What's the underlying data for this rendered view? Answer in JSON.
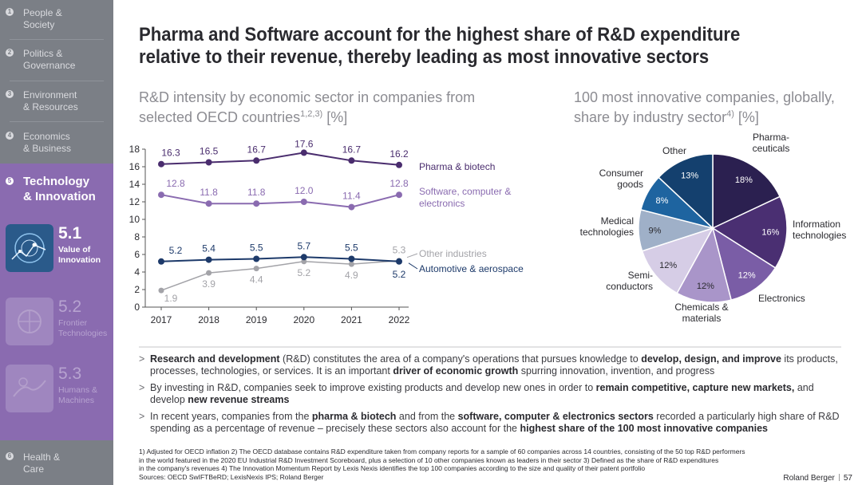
{
  "sidebar": {
    "items": [
      {
        "num": "1",
        "label": "People &\nSociety"
      },
      {
        "num": "2",
        "label": "Politics &\nGovernance"
      },
      {
        "num": "3",
        "label": "Environment\n& Resources"
      },
      {
        "num": "4",
        "label": "Economics\n& Business"
      }
    ],
    "active": {
      "num": "5",
      "label": "Technology\n& Innovation"
    },
    "subs": [
      {
        "num": "5.1",
        "label": "Value of\nInnovation"
      },
      {
        "num": "5.2",
        "label": "Frontier\nTechnologies"
      },
      {
        "num": "5.3",
        "label": "Humans &\nMachines"
      }
    ],
    "last": {
      "num": "6",
      "label": "Health &\nCare"
    }
  },
  "headline": "Pharma and Software account for the highest share of R&D expenditure relative to their revenue, thereby leading as most innovative sectors",
  "left_subtitle": {
    "text": "R&D intensity by economic sector in companies from selected OECD countries",
    "sup": "1,2,3)",
    "unit": " [%]"
  },
  "right_subtitle": {
    "text": "100 most innovative companies, globally, share by industry sector",
    "sup": "4)",
    "unit": " [%]"
  },
  "chart_data": [
    {
      "type": "line",
      "title": "R&D intensity by economic sector in companies from selected OECD countries [%]",
      "x": [
        "2017",
        "2018",
        "2019",
        "2020",
        "2021",
        "2022"
      ],
      "ylim": [
        0,
        18
      ],
      "yticks": [
        "0",
        "2",
        "4",
        "6",
        "8",
        "10",
        "12",
        "14",
        "16",
        "18"
      ],
      "series": [
        {
          "name": "Pharma & biotech",
          "color": "#4a2d6e",
          "values": [
            16.3,
            16.5,
            16.7,
            17.6,
            16.7,
            16.2
          ],
          "labels": [
            "16.3",
            "16.5",
            "16.7",
            "17.6",
            "16.7",
            "16.2"
          ]
        },
        {
          "name": "Software, computer & electronics",
          "color": "#8a6bb0",
          "values": [
            12.8,
            11.8,
            11.8,
            12.0,
            11.4,
            12.8
          ],
          "labels": [
            "12.8",
            "11.8",
            "11.8",
            "12.0",
            "11.4",
            "12.8"
          ]
        },
        {
          "name": "Other industries",
          "color": "#a3a3a8",
          "values": [
            1.9,
            3.9,
            4.4,
            5.2,
            4.9,
            5.3
          ],
          "labels": [
            "1.9",
            "3.9",
            "4.4",
            "5.2",
            "4.9",
            "5.3"
          ]
        },
        {
          "name": "Automotive & aerospace",
          "color": "#1d3a6a",
          "values": [
            5.2,
            5.4,
            5.5,
            5.7,
            5.5,
            5.2
          ],
          "labels": [
            "5.2",
            "5.4",
            "5.5",
            "5.7",
            "5.5",
            "5.2"
          ]
        }
      ]
    },
    {
      "type": "pie",
      "title": "100 most innovative companies, globally, share by industry sector [%]",
      "slices": [
        {
          "name": "Pharma-\nceuticals",
          "value": 18,
          "label": "18%",
          "color": "#2b2050"
        },
        {
          "name": "Information\ntechnologies",
          "value": 16,
          "label": "16%",
          "color": "#4a2f72"
        },
        {
          "name": "Electronics",
          "value": 12,
          "label": "12%",
          "color": "#7a5da6"
        },
        {
          "name": "Chemicals &\nmaterials",
          "value": 12,
          "label": "12%",
          "color": "#a995c9"
        },
        {
          "name": "Semi-\nconductors",
          "value": 12,
          "label": "12%",
          "color": "#d6cde6"
        },
        {
          "name": "Medical\ntechnologies",
          "value": 9,
          "label": "9%",
          "color": "#9fb0c8"
        },
        {
          "name": "Consumer\ngoods",
          "value": 8,
          "label": "8%",
          "color": "#1e64a0"
        },
        {
          "name": "Other",
          "value": 13,
          "label": "13%",
          "color": "#14406e"
        }
      ]
    }
  ],
  "bullets": [
    [
      [
        "b",
        "Research and development"
      ],
      [
        "t",
        " (R&D) constitutes the area of a company's operations that pursues knowledge to "
      ],
      [
        "b",
        "develop, design, and improve"
      ],
      [
        "t",
        " its products, processes, technologies, or services. It is an important "
      ],
      [
        "b",
        "driver of economic growth"
      ],
      [
        "t",
        " spurring innovation, invention, and progress"
      ]
    ],
    [
      [
        "t",
        "By investing in R&D, companies seek to improve existing products and develop new ones in order to "
      ],
      [
        "b",
        "remain competitive, capture new markets,"
      ],
      [
        "t",
        " and develop "
      ],
      [
        "b",
        "new revenue streams"
      ]
    ],
    [
      [
        "t",
        "In recent years, companies from the "
      ],
      [
        "b",
        "pharma & biotech"
      ],
      [
        "t",
        " and from the "
      ],
      [
        "b",
        "software, computer & electronics sectors"
      ],
      [
        "t",
        " recorded a particularly high share of R&D spending as a percentage of revenue – precisely these sectors also account for the "
      ],
      [
        "b",
        "highest share of the 100 most innovative companies"
      ]
    ]
  ],
  "bullet_marker": ">",
  "footnotes": [
    "1) Adjusted for OECD inflation  2) The OECD database contains R&D expenditure taken from company reports for a sample of 60 companies across 14 countries, consisting of the 50 top R&D performers",
    "in the world featured in the 2020 EU Industrial R&D Investment Scoreboard, plus a selection of 10 other companies known as leaders in their sector   3) Defined as the share of R&D expenditures",
    "in the company's revenues  4) The Innovation Momentum Report by Lexis Nexis identifies the top 100 companies according to the size and quality of their patent portfolio",
    "Sources: OECD SwIFTBeRD; LexisNexis IPS; Roland Berger"
  ],
  "brand": "Roland Berger",
  "page_number": "57"
}
